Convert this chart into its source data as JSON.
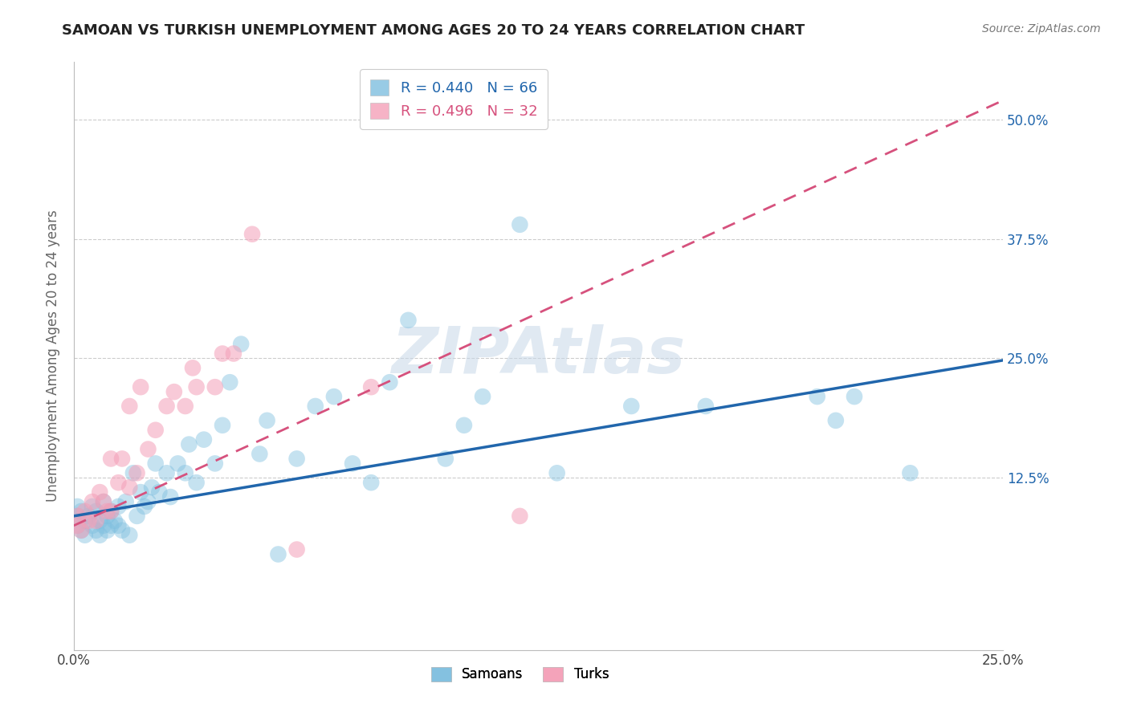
{
  "title": "SAMOAN VS TURKISH UNEMPLOYMENT AMONG AGES 20 TO 24 YEARS CORRELATION CHART",
  "source": "Source: ZipAtlas.com",
  "ylabel": "Unemployment Among Ages 20 to 24 years",
  "xlim": [
    0.0,
    0.25
  ],
  "ylim": [
    -0.055,
    0.56
  ],
  "yticks_right": [
    0.125,
    0.25,
    0.375,
    0.5
  ],
  "ytick_labels_right": [
    "12.5%",
    "25.0%",
    "37.5%",
    "50.0%"
  ],
  "xticks": [
    0.0,
    0.05,
    0.1,
    0.15,
    0.2,
    0.25
  ],
  "xtick_labels": [
    "0.0%",
    "",
    "",
    "",
    "",
    "25.0%"
  ],
  "legend_blue_label": "R = 0.440   N = 66",
  "legend_pink_label": "R = 0.496   N = 32",
  "legend_bottom": [
    "Samoans",
    "Turks"
  ],
  "blue_scatter_color": "#7fbfdf",
  "pink_scatter_color": "#f4a0b8",
  "blue_line_color": "#2166ac",
  "pink_line_color": "#d6517d",
  "grid_color": "#cccccc",
  "background_color": "#ffffff",
  "watermark": "ZIPAtlas",
  "blue_line_x0": 0.0,
  "blue_line_y0": 0.085,
  "blue_line_x1": 0.25,
  "blue_line_y1": 0.248,
  "pink_line_x0": 0.0,
  "pink_line_y0": 0.075,
  "pink_line_x1": 0.25,
  "pink_line_y1": 0.52,
  "samoans_x": [
    0.001,
    0.001,
    0.001,
    0.002,
    0.002,
    0.003,
    0.003,
    0.004,
    0.005,
    0.005,
    0.006,
    0.006,
    0.007,
    0.007,
    0.008,
    0.008,
    0.009,
    0.009,
    0.01,
    0.01,
    0.011,
    0.012,
    0.012,
    0.013,
    0.014,
    0.015,
    0.016,
    0.017,
    0.018,
    0.019,
    0.02,
    0.021,
    0.022,
    0.023,
    0.025,
    0.026,
    0.028,
    0.03,
    0.031,
    0.033,
    0.035,
    0.038,
    0.04,
    0.042,
    0.045,
    0.05,
    0.052,
    0.055,
    0.06,
    0.065,
    0.07,
    0.075,
    0.08,
    0.085,
    0.09,
    0.1,
    0.105,
    0.11,
    0.12,
    0.13,
    0.15,
    0.17,
    0.2,
    0.205,
    0.21,
    0.225
  ],
  "samoans_y": [
    0.075,
    0.085,
    0.095,
    0.07,
    0.09,
    0.065,
    0.08,
    0.085,
    0.075,
    0.095,
    0.07,
    0.09,
    0.065,
    0.08,
    0.075,
    0.1,
    0.07,
    0.085,
    0.075,
    0.09,
    0.08,
    0.075,
    0.095,
    0.07,
    0.1,
    0.065,
    0.13,
    0.085,
    0.11,
    0.095,
    0.1,
    0.115,
    0.14,
    0.11,
    0.13,
    0.105,
    0.14,
    0.13,
    0.16,
    0.12,
    0.165,
    0.14,
    0.18,
    0.225,
    0.265,
    0.15,
    0.185,
    0.045,
    0.145,
    0.2,
    0.21,
    0.14,
    0.12,
    0.225,
    0.29,
    0.145,
    0.18,
    0.21,
    0.39,
    0.13,
    0.2,
    0.2,
    0.21,
    0.185,
    0.21,
    0.13
  ],
  "turks_x": [
    0.001,
    0.001,
    0.002,
    0.003,
    0.004,
    0.005,
    0.006,
    0.007,
    0.008,
    0.009,
    0.01,
    0.01,
    0.012,
    0.013,
    0.015,
    0.015,
    0.017,
    0.018,
    0.02,
    0.022,
    0.025,
    0.027,
    0.03,
    0.032,
    0.033,
    0.038,
    0.04,
    0.043,
    0.048,
    0.06,
    0.08,
    0.12
  ],
  "turks_y": [
    0.075,
    0.085,
    0.07,
    0.09,
    0.08,
    0.1,
    0.08,
    0.11,
    0.1,
    0.09,
    0.09,
    0.145,
    0.12,
    0.145,
    0.115,
    0.2,
    0.13,
    0.22,
    0.155,
    0.175,
    0.2,
    0.215,
    0.2,
    0.24,
    0.22,
    0.22,
    0.255,
    0.255,
    0.38,
    0.05,
    0.22,
    0.085
  ]
}
